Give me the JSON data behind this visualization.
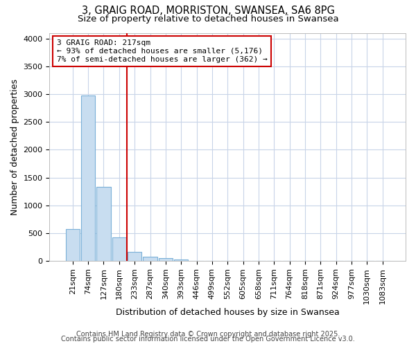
{
  "title_line1": "3, GRAIG ROAD, MORRISTON, SWANSEA, SA6 8PG",
  "title_line2": "Size of property relative to detached houses in Swansea",
  "xlabel": "Distribution of detached houses by size in Swansea",
  "ylabel": "Number of detached properties",
  "categories": [
    "21sqm",
    "74sqm",
    "127sqm",
    "180sqm",
    "233sqm",
    "287sqm",
    "340sqm",
    "393sqm",
    "446sqm",
    "499sqm",
    "552sqm",
    "605sqm",
    "658sqm",
    "711sqm",
    "764sqm",
    "818sqm",
    "871sqm",
    "924sqm",
    "977sqm",
    "1030sqm",
    "1083sqm"
  ],
  "values": [
    580,
    2970,
    1340,
    430,
    160,
    80,
    50,
    30,
    10,
    0,
    0,
    0,
    0,
    0,
    0,
    0,
    0,
    0,
    0,
    0,
    0
  ],
  "bar_color": "#c8ddf0",
  "bar_edge_color": "#7ab0d8",
  "vline_color": "#cc0000",
  "vline_x_index": 4,
  "annotation_text": "3 GRAIG ROAD: 217sqm\n← 93% of detached houses are smaller (5,176)\n7% of semi-detached houses are larger (362) →",
  "annotation_box_color": "#ffffff",
  "annotation_box_edge_color": "#cc0000",
  "ylim": [
    0,
    4100
  ],
  "yticks": [
    0,
    500,
    1000,
    1500,
    2000,
    2500,
    3000,
    3500,
    4000
  ],
  "footer_line1": "Contains HM Land Registry data © Crown copyright and database right 2025.",
  "footer_line2": "Contains public sector information licensed under the Open Government Licence v3.0.",
  "background_color": "#ffffff",
  "plot_background_color": "#ffffff",
  "grid_color": "#c8d4e8",
  "title_fontsize": 10.5,
  "subtitle_fontsize": 9.5,
  "axis_label_fontsize": 9,
  "tick_fontsize": 8,
  "annotation_fontsize": 8,
  "footer_fontsize": 7
}
